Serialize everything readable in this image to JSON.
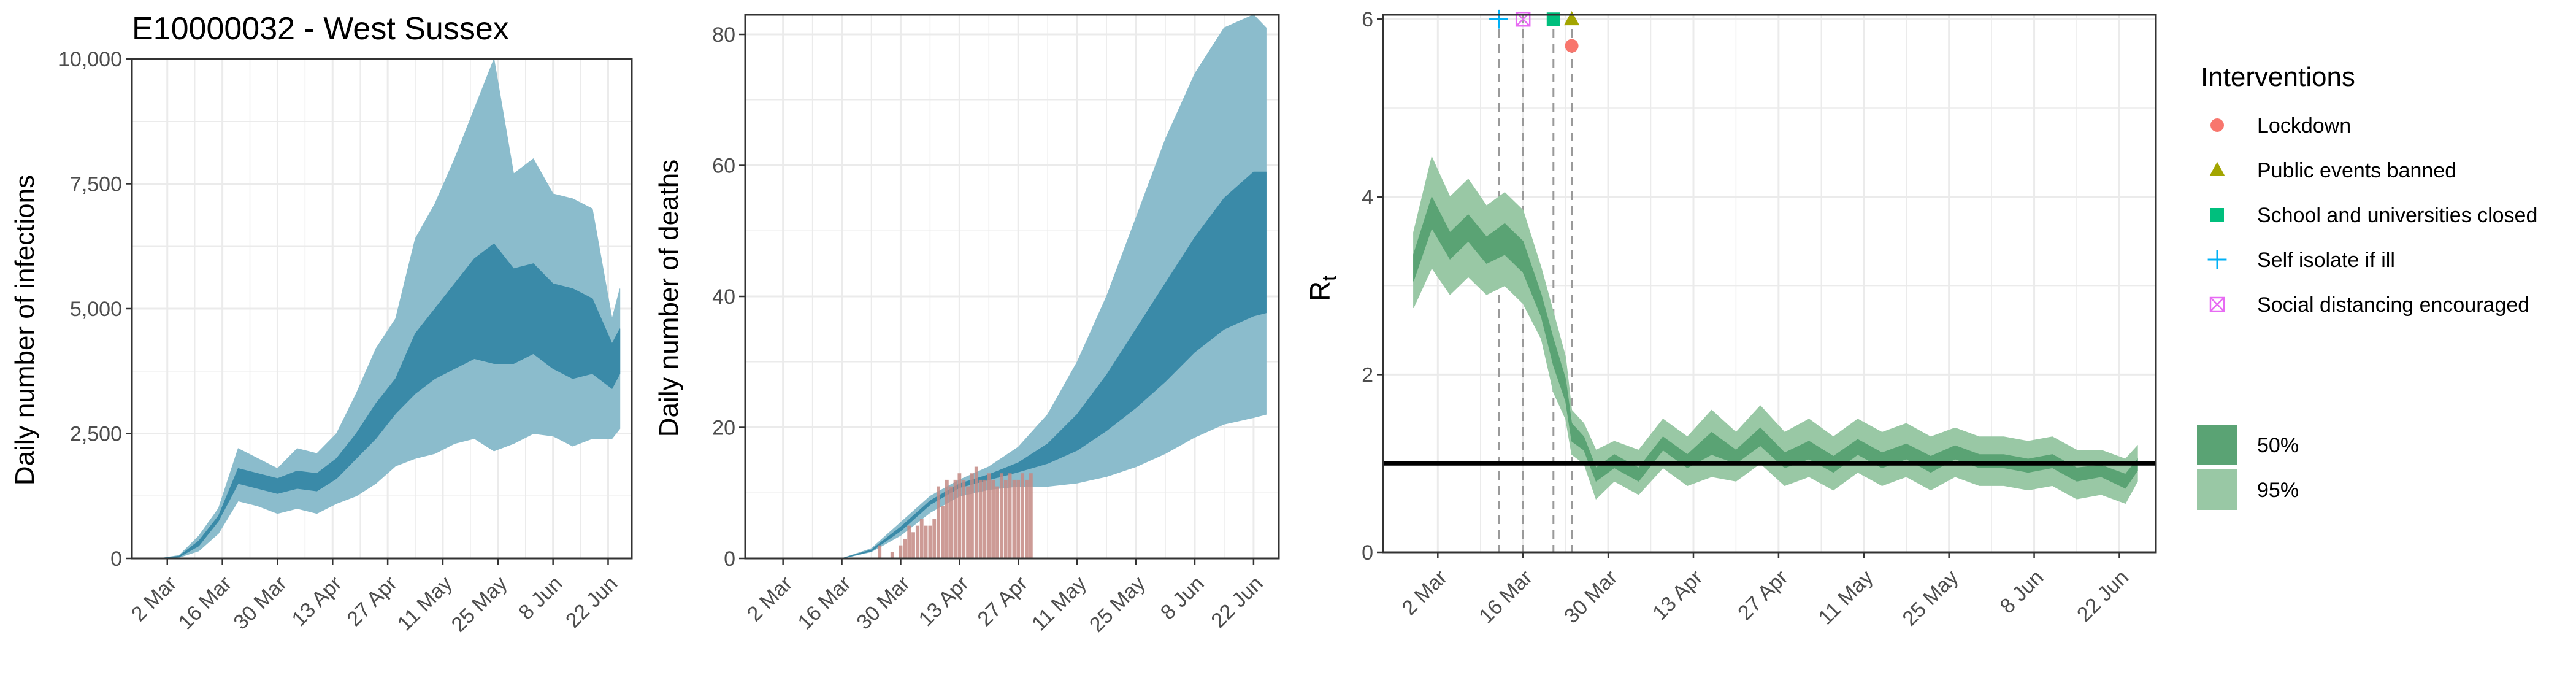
{
  "colors": {
    "outer_band": "#8bbccc",
    "inner_band": "#3a8aa8",
    "death_bar": "#c48a84",
    "rt_outer": "#99c8a5",
    "rt_inner": "#5aa374",
    "grid": "#ebebeb",
    "panel_border": "#333333",
    "axis_text": "#4d4d4d",
    "lockdown": "#f8766d",
    "public_events": "#a3a500",
    "schools": "#00bf7d",
    "self_isolate": "#00b0f6",
    "social_distancing": "#e76bf3"
  },
  "chart_data": [
    {
      "type": "area",
      "title": "E10000032 - West Sussex",
      "ylabel": "Daily number of infections",
      "xlabel": "",
      "x_ticks": [
        "2 Mar",
        "16 Mar",
        "30 Mar",
        "13 Apr",
        "27 Apr",
        "11 May",
        "25 May",
        "8 Jun",
        "22 Jun"
      ],
      "y_ticks": [
        "0",
        "2,500",
        "5,000",
        "7,500",
        "10,000"
      ],
      "ylim": [
        0,
        10000
      ],
      "x_range": [
        "2020-02-22",
        "2020-06-28"
      ],
      "grid": true,
      "series": [
        {
          "band": "95%",
          "x": [
            "2020-02-29",
            "2020-03-05",
            "2020-03-10",
            "2020-03-15",
            "2020-03-20",
            "2020-03-25",
            "2020-03-30",
            "2020-04-04",
            "2020-04-09",
            "2020-04-14",
            "2020-04-19",
            "2020-04-24",
            "2020-04-29",
            "2020-05-04",
            "2020-05-09",
            "2020-05-14",
            "2020-05-19",
            "2020-05-24",
            "2020-05-29",
            "2020-06-03",
            "2020-06-08",
            "2020-06-13",
            "2020-06-18",
            "2020-06-23",
            "2020-06-25"
          ],
          "low": [
            0,
            20,
            150,
            500,
            1150,
            1050,
            900,
            1000,
            900,
            1100,
            1250,
            1500,
            1850,
            2000,
            2100,
            2300,
            2400,
            2150,
            2300,
            2500,
            2450,
            2250,
            2400,
            2400,
            2600
          ],
          "high": [
            0,
            60,
            450,
            1000,
            2200,
            2000,
            1800,
            2200,
            2100,
            2500,
            3300,
            4200,
            4800,
            6400,
            7100,
            8000,
            9000,
            10000,
            7700,
            8000,
            7300,
            7200,
            7000,
            4800,
            5400
          ]
        },
        {
          "band": "50%",
          "x": [
            "2020-02-29",
            "2020-03-05",
            "2020-03-10",
            "2020-03-15",
            "2020-03-20",
            "2020-03-25",
            "2020-03-30",
            "2020-04-04",
            "2020-04-09",
            "2020-04-14",
            "2020-04-19",
            "2020-04-24",
            "2020-04-29",
            "2020-05-04",
            "2020-05-09",
            "2020-05-14",
            "2020-05-19",
            "2020-05-24",
            "2020-05-29",
            "2020-06-03",
            "2020-06-08",
            "2020-06-13",
            "2020-06-18",
            "2020-06-23",
            "2020-06-25"
          ],
          "low": [
            0,
            30,
            250,
            750,
            1500,
            1400,
            1300,
            1400,
            1350,
            1600,
            2000,
            2400,
            2900,
            3300,
            3600,
            3800,
            4000,
            3900,
            3900,
            4100,
            3800,
            3600,
            3700,
            3400,
            3700
          ],
          "high": [
            0,
            45,
            350,
            850,
            1800,
            1700,
            1600,
            1750,
            1700,
            2000,
            2500,
            3100,
            3600,
            4500,
            5000,
            5500,
            6000,
            6300,
            5800,
            5900,
            5500,
            5400,
            5200,
            4300,
            4600
          ]
        }
      ]
    },
    {
      "type": "area",
      "title": "",
      "ylabel": "Daily number of deaths",
      "xlabel": "",
      "x_ticks": [
        "2 Mar",
        "16 Mar",
        "30 Mar",
        "13 Apr",
        "27 Apr",
        "11 May",
        "25 May",
        "8 Jun",
        "22 Jun"
      ],
      "y_ticks": [
        "0",
        "20",
        "40",
        "60",
        "80"
      ],
      "ylim": [
        0,
        83
      ],
      "x_range": [
        "2020-02-22",
        "2020-06-28"
      ],
      "grid": true,
      "series": [
        {
          "band": "95%",
          "x": [
            "2020-03-16",
            "2020-03-23",
            "2020-03-30",
            "2020-04-06",
            "2020-04-13",
            "2020-04-20",
            "2020-04-27",
            "2020-05-04",
            "2020-05-11",
            "2020-05-18",
            "2020-05-25",
            "2020-06-01",
            "2020-06-08",
            "2020-06-15",
            "2020-06-22",
            "2020-06-25"
          ],
          "low": [
            0,
            1,
            3.5,
            7,
            9.5,
            10.5,
            11,
            11,
            11.5,
            12.5,
            14,
            16,
            18.5,
            20.5,
            21.5,
            22
          ],
          "high": [
            0,
            1.5,
            5.5,
            9.5,
            12,
            14,
            17,
            22,
            30,
            40,
            52,
            64,
            74,
            81,
            83,
            81
          ]
        },
        {
          "band": "50%",
          "x": [
            "2020-03-16",
            "2020-03-23",
            "2020-03-30",
            "2020-04-06",
            "2020-04-13",
            "2020-04-20",
            "2020-04-27",
            "2020-05-04",
            "2020-05-11",
            "2020-05-18",
            "2020-05-25",
            "2020-06-01",
            "2020-06-08",
            "2020-06-15",
            "2020-06-22",
            "2020-06-25"
          ],
          "low": [
            0,
            1.1,
            4.2,
            8.2,
            10.8,
            12,
            13.2,
            14.5,
            16.5,
            19.5,
            23,
            27,
            31.5,
            35,
            37,
            37.5
          ],
          "high": [
            0,
            1.3,
            4.8,
            8.8,
            11.4,
            12.8,
            14.6,
            17.5,
            22,
            28,
            35,
            42,
            49,
            55,
            59,
            59
          ]
        }
      ],
      "bars": {
        "x": [
          "2020-03-25",
          "2020-03-28",
          "2020-03-30",
          "2020-03-31",
          "2020-04-01",
          "2020-04-02",
          "2020-04-03",
          "2020-04-04",
          "2020-04-05",
          "2020-04-06",
          "2020-04-07",
          "2020-04-08",
          "2020-04-09",
          "2020-04-10",
          "2020-04-11",
          "2020-04-12",
          "2020-04-13",
          "2020-04-14",
          "2020-04-15",
          "2020-04-16",
          "2020-04-17",
          "2020-04-18",
          "2020-04-19",
          "2020-04-20",
          "2020-04-21",
          "2020-04-22",
          "2020-04-23",
          "2020-04-24",
          "2020-04-25",
          "2020-04-26",
          "2020-04-27",
          "2020-04-28",
          "2020-04-29",
          "2020-04-30"
        ],
        "values": [
          2,
          1,
          2,
          3,
          5,
          4,
          5,
          6,
          5,
          5,
          6,
          11,
          8,
          12,
          11,
          12,
          13,
          12,
          11,
          13,
          14,
          12,
          12,
          13,
          12,
          11,
          13,
          12,
          13,
          12,
          12,
          13,
          12,
          13
        ]
      }
    },
    {
      "type": "area",
      "title": "",
      "ylabel": "R",
      "ylabel_sub": "t",
      "xlabel": "",
      "x_ticks": [
        "2 Mar",
        "16 Mar",
        "30 Mar",
        "13 Apr",
        "27 Apr",
        "11 May",
        "25 May",
        "8 Jun",
        "22 Jun"
      ],
      "y_ticks": [
        "0",
        "2",
        "4",
        "6"
      ],
      "ylim": [
        0,
        6.05
      ],
      "x_range": [
        "2020-02-22",
        "2020-06-28"
      ],
      "reference_line": 1,
      "grid": true,
      "series": [
        {
          "band": "95%",
          "x": [
            "2020-02-27",
            "2020-03-01",
            "2020-03-04",
            "2020-03-07",
            "2020-03-10",
            "2020-03-13",
            "2020-03-16",
            "2020-03-19",
            "2020-03-21",
            "2020-03-23",
            "2020-03-24",
            "2020-03-26",
            "2020-03-28",
            "2020-03-31",
            "2020-04-04",
            "2020-04-08",
            "2020-04-12",
            "2020-04-16",
            "2020-04-20",
            "2020-04-24",
            "2020-04-28",
            "2020-05-02",
            "2020-05-06",
            "2020-05-10",
            "2020-05-14",
            "2020-05-18",
            "2020-05-22",
            "2020-05-26",
            "2020-05-30",
            "2020-06-03",
            "2020-06-07",
            "2020-06-11",
            "2020-06-15",
            "2020-06-19",
            "2020-06-23",
            "2020-06-25"
          ],
          "low": [
            2.75,
            3.2,
            2.9,
            3.1,
            2.9,
            3.0,
            2.8,
            2.4,
            1.8,
            1.5,
            1.1,
            1.0,
            0.6,
            0.8,
            0.65,
            0.95,
            0.75,
            0.85,
            0.8,
            1.0,
            0.75,
            0.85,
            0.7,
            0.9,
            0.75,
            0.85,
            0.7,
            0.85,
            0.75,
            0.75,
            0.7,
            0.75,
            0.6,
            0.65,
            0.55,
            0.8
          ],
          "high": [
            3.6,
            4.45,
            4.0,
            4.2,
            3.9,
            4.05,
            3.85,
            3.2,
            2.7,
            2.2,
            1.6,
            1.45,
            1.15,
            1.25,
            1.15,
            1.5,
            1.3,
            1.6,
            1.35,
            1.65,
            1.35,
            1.5,
            1.3,
            1.5,
            1.35,
            1.45,
            1.3,
            1.4,
            1.3,
            1.3,
            1.25,
            1.3,
            1.15,
            1.15,
            1.05,
            1.2
          ]
        },
        {
          "band": "50%",
          "x": [
            "2020-02-27",
            "2020-03-01",
            "2020-03-04",
            "2020-03-07",
            "2020-03-10",
            "2020-03-13",
            "2020-03-16",
            "2020-03-19",
            "2020-03-21",
            "2020-03-23",
            "2020-03-24",
            "2020-03-26",
            "2020-03-28",
            "2020-03-31",
            "2020-04-04",
            "2020-04-08",
            "2020-04-12",
            "2020-04-16",
            "2020-04-20",
            "2020-04-24",
            "2020-04-28",
            "2020-05-02",
            "2020-05-06",
            "2020-05-10",
            "2020-05-14",
            "2020-05-18",
            "2020-05-22",
            "2020-05-26",
            "2020-05-30",
            "2020-06-03",
            "2020-06-07",
            "2020-06-11",
            "2020-06-15",
            "2020-06-19",
            "2020-06-23",
            "2020-06-25"
          ],
          "low": [
            3.05,
            3.65,
            3.3,
            3.5,
            3.25,
            3.35,
            3.15,
            2.65,
            2.1,
            1.7,
            1.25,
            1.15,
            0.8,
            0.95,
            0.8,
            1.15,
            0.95,
            1.1,
            1.0,
            1.2,
            0.95,
            1.05,
            0.9,
            1.1,
            0.95,
            1.05,
            0.9,
            1.05,
            0.95,
            0.95,
            0.9,
            0.95,
            0.8,
            0.85,
            0.72,
            0.92
          ],
          "high": [
            3.35,
            4.0,
            3.6,
            3.8,
            3.55,
            3.7,
            3.5,
            2.9,
            2.4,
            1.95,
            1.45,
            1.3,
            0.95,
            1.1,
            0.95,
            1.3,
            1.1,
            1.35,
            1.15,
            1.4,
            1.12,
            1.25,
            1.08,
            1.27,
            1.12,
            1.22,
            1.08,
            1.2,
            1.1,
            1.1,
            1.05,
            1.1,
            0.95,
            0.98,
            0.88,
            1.05
          ]
        }
      ],
      "interventions": [
        {
          "name": "Self isolate if ill",
          "date": "2020-03-12",
          "y": 6.0,
          "shape": "plus",
          "color_key": "self_isolate"
        },
        {
          "name": "Social distancing encouraged",
          "date": "2020-03-16",
          "y": 6.0,
          "shape": "square-x",
          "color_key": "social_distancing"
        },
        {
          "name": "School and universities closed",
          "date": "2020-03-21",
          "y": 6.0,
          "shape": "square",
          "color_key": "schools"
        },
        {
          "name": "Public events banned",
          "date": "2020-03-24",
          "y": 6.0,
          "shape": "triangle",
          "color_key": "public_events"
        },
        {
          "name": "Lockdown",
          "date": "2020-03-24",
          "y": 5.7,
          "shape": "circle",
          "color_key": "lockdown"
        }
      ]
    }
  ],
  "legend": {
    "title": "Interventions",
    "items": [
      {
        "label": "Lockdown",
        "shape": "circle",
        "color_key": "lockdown"
      },
      {
        "label": "Public events banned",
        "shape": "triangle",
        "color_key": "public_events"
      },
      {
        "label": "School and universities closed",
        "shape": "square",
        "color_key": "schools"
      },
      {
        "label": "Self isolate if ill",
        "shape": "plus",
        "color_key": "self_isolate"
      },
      {
        "label": "Social distancing encouraged",
        "shape": "square-x",
        "color_key": "social_distancing"
      }
    ],
    "bands": [
      {
        "label": "50%",
        "color_key": "rt_inner"
      },
      {
        "label": "95%",
        "color_key": "rt_outer"
      }
    ]
  }
}
